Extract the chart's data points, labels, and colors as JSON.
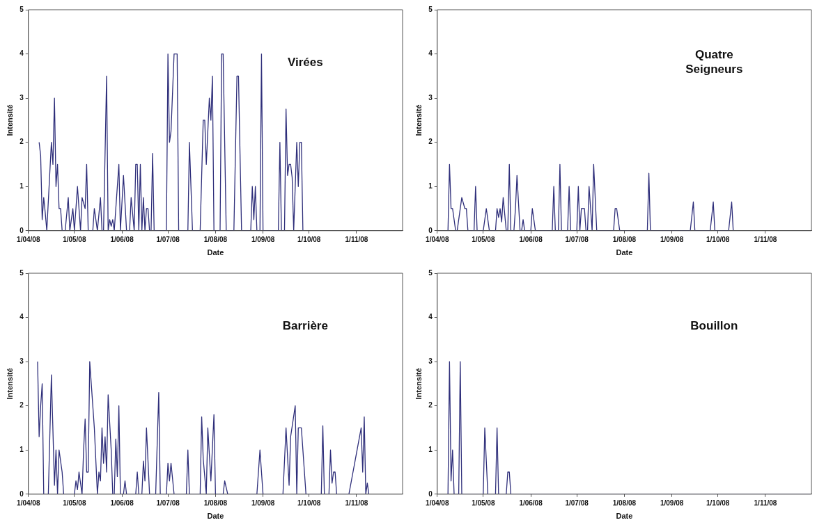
{
  "chart_data": [
    {
      "type": "line",
      "xlabel": "Date",
      "ylabel": "Intensité",
      "annotations": [
        "Virées"
      ],
      "xlim": [
        "2008-04-01",
        "2008-12-01"
      ],
      "xticks": [
        {
          "value": "2008-04-01",
          "label": "1/04/08"
        },
        {
          "value": "2008-05-01",
          "label": "1/05/08"
        },
        {
          "value": "2008-06-01",
          "label": "1/06/08"
        },
        {
          "value": "2008-07-01",
          "label": "1/07/08"
        },
        {
          "value": "2008-08-01",
          "label": "1/08/08"
        },
        {
          "value": "2008-09-01",
          "label": "1/09/08"
        },
        {
          "value": "2008-10-01",
          "label": "1/10/08"
        },
        {
          "value": "2008-11-01",
          "label": "1/11/08"
        }
      ],
      "ylim": [
        0,
        5
      ],
      "yticks": [
        0,
        1,
        2,
        3,
        4,
        5
      ],
      "grid": false,
      "legend": false,
      "marker": "none",
      "x": [
        "2008-04-08",
        "2008-04-09",
        "2008-04-10",
        "2008-04-11",
        "2008-04-12",
        "2008-04-13",
        "2008-04-16",
        "2008-04-17",
        "2008-04-18",
        "2008-04-19",
        "2008-04-20",
        "2008-04-21",
        "2008-04-22",
        "2008-04-23",
        "2008-04-25",
        "2008-04-27",
        "2008-04-28",
        "2008-04-30",
        "2008-05-01",
        "2008-05-03",
        "2008-05-05",
        "2008-05-06",
        "2008-05-08",
        "2008-05-09",
        "2008-05-10",
        "2008-05-13",
        "2008-05-14",
        "2008-05-16",
        "2008-05-18",
        "2008-05-19",
        "2008-05-20",
        "2008-05-22",
        "2008-05-23",
        "2008-05-24",
        "2008-05-25",
        "2008-05-26",
        "2008-05-27",
        "2008-05-30",
        "2008-05-31",
        "2008-06-02",
        "2008-06-04",
        "2008-06-06",
        "2008-06-07",
        "2008-06-09",
        "2008-06-10",
        "2008-06-11",
        "2008-06-12",
        "2008-06-13",
        "2008-06-14",
        "2008-06-15",
        "2008-06-16",
        "2008-06-17",
        "2008-06-18",
        "2008-06-19",
        "2008-06-20",
        "2008-06-21",
        "2008-06-22",
        "2008-06-30",
        "2008-07-01",
        "2008-07-02",
        "2008-07-03",
        "2008-07-05",
        "2008-07-07",
        "2008-07-08",
        "2008-07-14",
        "2008-07-15",
        "2008-07-17",
        "2008-07-22",
        "2008-07-24",
        "2008-07-25",
        "2008-07-26",
        "2008-07-28",
        "2008-07-29",
        "2008-07-30",
        "2008-07-31",
        "2008-08-04",
        "2008-08-05",
        "2008-08-06",
        "2008-08-08",
        "2008-08-13",
        "2008-08-15",
        "2008-08-16",
        "2008-08-18",
        "2008-08-24",
        "2008-08-25",
        "2008-08-26",
        "2008-08-27",
        "2008-08-28",
        "2008-08-30",
        "2008-08-31",
        "2008-09-01",
        "2008-09-11",
        "2008-09-12",
        "2008-09-13",
        "2008-09-15",
        "2008-09-16",
        "2008-09-17",
        "2008-09-18",
        "2008-09-19",
        "2008-09-20",
        "2008-09-21",
        "2008-09-23",
        "2008-09-24",
        "2008-09-25",
        "2008-09-26",
        "2008-09-27"
      ],
      "series": [
        {
          "color": "#2e2e7a",
          "values": [
            2,
            1.7,
            0.25,
            0.75,
            0.4,
            0,
            2,
            1.5,
            3,
            1,
            1.5,
            0.5,
            0.5,
            0,
            0,
            0.75,
            0,
            0.5,
            0,
            1,
            0,
            0.75,
            0.5,
            1.5,
            0,
            0,
            0.5,
            0,
            0.75,
            0,
            0,
            3.5,
            0,
            0.25,
            0.1,
            0.25,
            0,
            1.5,
            0,
            1.25,
            0,
            0,
            0.75,
            0,
            1.5,
            1.5,
            0,
            1.5,
            0,
            0.75,
            0,
            0.5,
            0.5,
            0,
            0,
            1.75,
            0,
            0,
            4,
            2,
            2.25,
            4,
            4,
            0,
            0,
            2,
            0,
            0,
            2.5,
            2.5,
            1.5,
            3,
            2.5,
            3.5,
            0,
            0,
            4,
            4,
            0,
            0,
            3.5,
            3.5,
            0,
            0,
            1,
            0.25,
            1,
            0,
            0,
            4,
            0,
            0,
            2,
            0,
            0,
            2.75,
            1.25,
            1.5,
            1.5,
            1.2,
            0,
            2,
            1,
            2,
            2,
            0
          ]
        }
      ]
    },
    {
      "type": "line",
      "xlabel": "Date",
      "ylabel": "Intensité",
      "annotations": [
        "Quatre Seigneurs"
      ],
      "xlim": [
        "2008-04-01",
        "2008-12-01"
      ],
      "xticks": [
        {
          "value": "2008-04-01",
          "label": "1/04/08"
        },
        {
          "value": "2008-05-01",
          "label": "1/05/08"
        },
        {
          "value": "2008-06-01",
          "label": "1/06/08"
        },
        {
          "value": "2008-07-01",
          "label": "1/07/08"
        },
        {
          "value": "2008-08-01",
          "label": "1/08/08"
        },
        {
          "value": "2008-09-01",
          "label": "1/09/08"
        },
        {
          "value": "2008-10-01",
          "label": "1/10/08"
        },
        {
          "value": "2008-11-01",
          "label": "1/11/08"
        }
      ],
      "ylim": [
        0,
        5
      ],
      "yticks": [
        0,
        1,
        2,
        3,
        4,
        5
      ],
      "grid": false,
      "legend": false,
      "marker": "none",
      "x": [
        "2008-04-08",
        "2008-04-09",
        "2008-04-10",
        "2008-04-11",
        "2008-04-13",
        "2008-04-14",
        "2008-04-17",
        "2008-04-19",
        "2008-04-20",
        "2008-04-21",
        "2008-04-25",
        "2008-04-26",
        "2008-04-27",
        "2008-05-01",
        "2008-05-03",
        "2008-05-05",
        "2008-05-09",
        "2008-05-10",
        "2008-05-11",
        "2008-05-12",
        "2008-05-13",
        "2008-05-14",
        "2008-05-16",
        "2008-05-17",
        "2008-05-18",
        "2008-05-19",
        "2008-05-21",
        "2008-05-22",
        "2008-05-23",
        "2008-05-25",
        "2008-05-26",
        "2008-05-27",
        "2008-05-28",
        "2008-06-01",
        "2008-06-02",
        "2008-06-04",
        "2008-06-15",
        "2008-06-16",
        "2008-06-17",
        "2008-06-19",
        "2008-06-20",
        "2008-06-21",
        "2008-06-25",
        "2008-06-26",
        "2008-06-27",
        "2008-07-01",
        "2008-07-02",
        "2008-07-03",
        "2008-07-04",
        "2008-07-06",
        "2008-07-07",
        "2008-07-08",
        "2008-07-09",
        "2008-07-11",
        "2008-07-12",
        "2008-07-14",
        "2008-07-25",
        "2008-07-26",
        "2008-07-27",
        "2008-07-29",
        "2008-08-16",
        "2008-08-17",
        "2008-08-18",
        "2008-09-13",
        "2008-09-15",
        "2008-09-16",
        "2008-09-26",
        "2008-09-28",
        "2008-09-29",
        "2008-10-08",
        "2008-10-10",
        "2008-10-11"
      ],
      "series": [
        {
          "color": "#2e2e7a",
          "values": [
            0,
            1.5,
            0.5,
            0.5,
            0,
            0,
            0.75,
            0.5,
            0.5,
            0,
            0,
            1,
            0,
            0,
            0.5,
            0,
            0,
            0.5,
            0.3,
            0.5,
            0.2,
            0.75,
            0,
            0,
            1.5,
            0,
            0,
            0.5,
            1.25,
            0,
            0,
            0.25,
            0,
            0,
            0.5,
            0,
            0,
            1,
            0,
            0,
            1.5,
            0,
            0,
            1,
            0,
            0,
            1,
            0,
            0.5,
            0.5,
            0,
            0,
            1,
            0,
            1.5,
            0,
            0,
            0.5,
            0.5,
            0,
            0,
            1.3,
            0,
            0,
            0.65,
            0,
            0,
            0.65,
            0,
            0,
            0.65,
            0
          ]
        }
      ]
    },
    {
      "type": "line",
      "xlabel": "Date",
      "ylabel": "Intensité",
      "annotations": [
        "Barrière"
      ],
      "xlim": [
        "2008-04-01",
        "2008-12-01"
      ],
      "xticks": [
        {
          "value": "2008-04-01",
          "label": "1/04/08"
        },
        {
          "value": "2008-05-01",
          "label": "1/05/08"
        },
        {
          "value": "2008-06-01",
          "label": "1/06/08"
        },
        {
          "value": "2008-07-01",
          "label": "1/07/08"
        },
        {
          "value": "2008-08-01",
          "label": "1/08/08"
        },
        {
          "value": "2008-09-01",
          "label": "1/09/08"
        },
        {
          "value": "2008-10-01",
          "label": "1/10/08"
        },
        {
          "value": "2008-11-01",
          "label": "1/11/08"
        }
      ],
      "ylim": [
        0,
        5
      ],
      "yticks": [
        0,
        1,
        2,
        3,
        4,
        5
      ],
      "grid": false,
      "legend": false,
      "marker": "none",
      "x": [
        "2008-04-07",
        "2008-04-08",
        "2008-04-09",
        "2008-04-10",
        "2008-04-11",
        "2008-04-14",
        "2008-04-16",
        "2008-04-18",
        "2008-04-19",
        "2008-04-20",
        "2008-04-21",
        "2008-04-23",
        "2008-04-24",
        "2008-05-01",
        "2008-05-02",
        "2008-05-03",
        "2008-05-04",
        "2008-05-06",
        "2008-05-07",
        "2008-05-08",
        "2008-05-09",
        "2008-05-10",
        "2008-05-11",
        "2008-05-14",
        "2008-05-16",
        "2008-05-17",
        "2008-05-18",
        "2008-05-19",
        "2008-05-20",
        "2008-05-21",
        "2008-05-22",
        "2008-05-23",
        "2008-05-25",
        "2008-05-26",
        "2008-05-27",
        "2008-05-28",
        "2008-05-29",
        "2008-05-30",
        "2008-05-31",
        "2008-06-02",
        "2008-06-03",
        "2008-06-04",
        "2008-06-10",
        "2008-06-11",
        "2008-06-12",
        "2008-06-14",
        "2008-06-15",
        "2008-06-16",
        "2008-06-17",
        "2008-06-19",
        "2008-06-23",
        "2008-06-25",
        "2008-06-26",
        "2008-06-30",
        "2008-07-01",
        "2008-07-02",
        "2008-07-03",
        "2008-07-05",
        "2008-07-13",
        "2008-07-14",
        "2008-07-15",
        "2008-07-22",
        "2008-07-23",
        "2008-07-24",
        "2008-07-26",
        "2008-07-27",
        "2008-07-29",
        "2008-07-31",
        "2008-08-01",
        "2008-08-06",
        "2008-08-07",
        "2008-08-09",
        "2008-08-28",
        "2008-08-30",
        "2008-09-01",
        "2008-09-14",
        "2008-09-16",
        "2008-09-18",
        "2008-09-19",
        "2008-09-22",
        "2008-09-23",
        "2008-09-24",
        "2008-09-26",
        "2008-09-29",
        "2008-10-09",
        "2008-10-10",
        "2008-10-11",
        "2008-10-14",
        "2008-10-15",
        "2008-10-16",
        "2008-10-17",
        "2008-10-18",
        "2008-10-19",
        "2008-10-27",
        "2008-11-04",
        "2008-11-05",
        "2008-11-06",
        "2008-11-07",
        "2008-11-08",
        "2008-11-09"
      ],
      "series": [
        {
          "color": "#2e2e7a",
          "values": [
            3,
            1.3,
            2,
            2.5,
            0,
            0,
            2.7,
            0.2,
            1,
            0,
            1,
            0.5,
            0,
            0,
            0.3,
            0.1,
            0.5,
            0,
            1,
            1.7,
            0.5,
            0.5,
            3,
            1.5,
            0,
            0.5,
            0.3,
            1.5,
            0.7,
            1.3,
            0.5,
            2.25,
            1,
            0,
            0,
            1.25,
            0.4,
            2,
            0,
            0,
            0.3,
            0,
            0,
            0.5,
            0,
            0,
            0.75,
            0.3,
            1.5,
            0,
            0,
            2.3,
            0,
            0,
            0.7,
            0.3,
            0.7,
            0,
            0,
            1,
            0,
            0,
            1.75,
            0.8,
            0,
            1.5,
            0.3,
            1.8,
            0,
            0,
            0.3,
            0,
            0,
            1,
            0,
            0,
            1.5,
            0.2,
            1.3,
            2,
            0,
            1.5,
            1.5,
            0,
            0,
            1.55,
            0,
            0,
            1,
            0.25,
            0.5,
            0.5,
            0,
            0,
            1.5,
            0.5,
            1.75,
            0,
            0.25,
            0
          ]
        }
      ]
    },
    {
      "type": "line",
      "xlabel": "Date",
      "ylabel": "Intensité",
      "annotations": [
        "Bouillon"
      ],
      "xlim": [
        "2008-04-01",
        "2008-12-01"
      ],
      "xticks": [
        {
          "value": "2008-04-01",
          "label": "1/04/08"
        },
        {
          "value": "2008-05-01",
          "label": "1/05/08"
        },
        {
          "value": "2008-06-01",
          "label": "1/06/08"
        },
        {
          "value": "2008-07-01",
          "label": "1/07/08"
        },
        {
          "value": "2008-08-01",
          "label": "1/08/08"
        },
        {
          "value": "2008-09-01",
          "label": "1/09/08"
        },
        {
          "value": "2008-10-01",
          "label": "1/10/08"
        },
        {
          "value": "2008-11-01",
          "label": "1/11/08"
        }
      ],
      "ylim": [
        0,
        5
      ],
      "yticks": [
        0,
        1,
        2,
        3,
        4,
        5
      ],
      "grid": false,
      "legend": false,
      "marker": "none",
      "x": [
        "2008-04-08",
        "2008-04-09",
        "2008-04-10",
        "2008-04-11",
        "2008-04-12",
        "2008-04-15",
        "2008-04-16",
        "2008-04-17",
        "2008-05-01",
        "2008-05-02",
        "2008-05-04",
        "2008-05-09",
        "2008-05-10",
        "2008-05-11",
        "2008-05-16",
        "2008-05-17",
        "2008-05-18",
        "2008-05-19",
        "2008-11-30"
      ],
      "series": [
        {
          "color": "#2e2e7a",
          "values": [
            0,
            3,
            0.3,
            1,
            0,
            0,
            3,
            0,
            0,
            1.5,
            0,
            0,
            1.5,
            0,
            0,
            0.5,
            0.5,
            0,
            0
          ]
        }
      ]
    }
  ]
}
